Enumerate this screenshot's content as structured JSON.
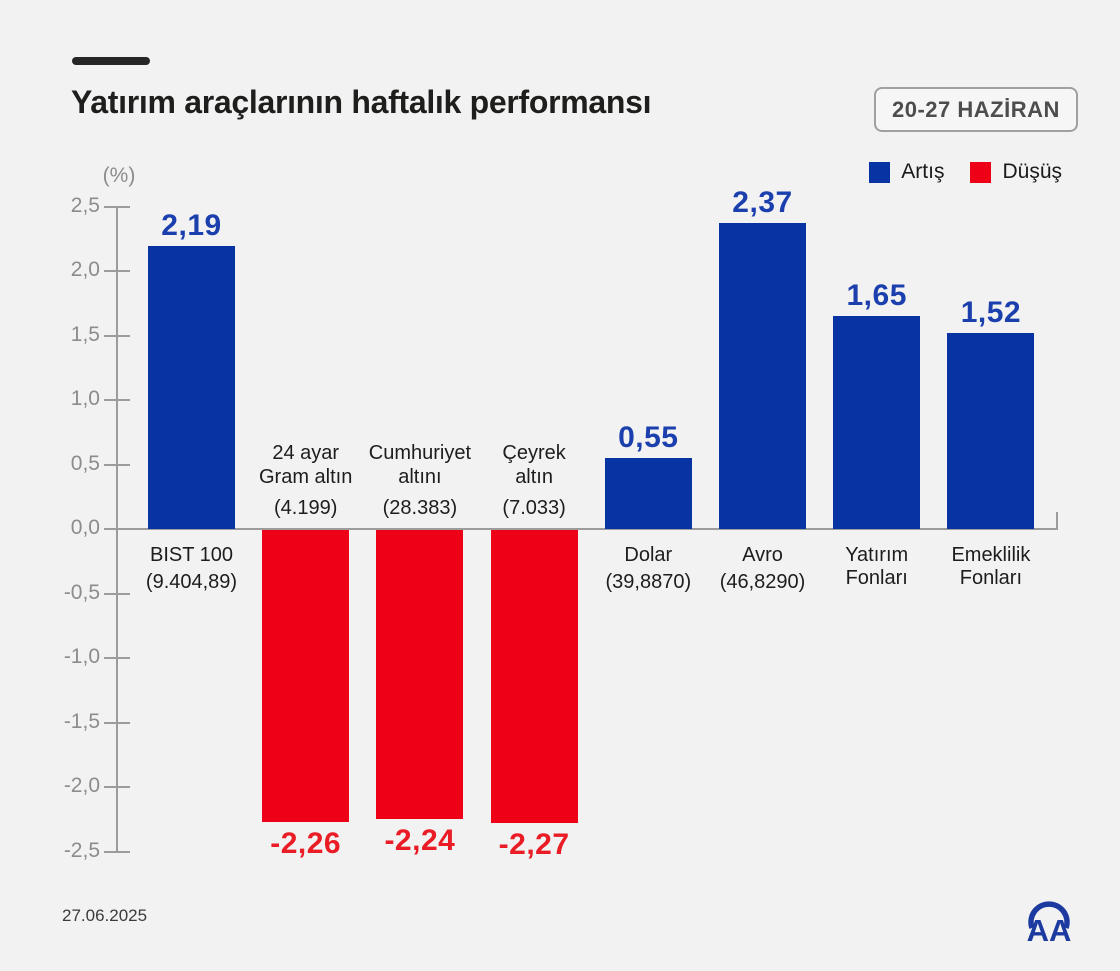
{
  "header": {
    "title": "Yatırım araçlarının haftalık performansı",
    "period_badge": "20-27 HAZİRAN"
  },
  "legend": {
    "increase_label": "Artış",
    "decrease_label": "Düşüş"
  },
  "footer": {
    "date": "27.06.2025",
    "logo_text": "AA"
  },
  "colors": {
    "increase": "#0834a3",
    "increase_text": "#1c3fae",
    "decrease": "#ee0016",
    "decrease_text": "#ea1c25",
    "background": "#f2f2f2",
    "title_text": "#1e1e1c",
    "underline": "#262626",
    "axis": "#9c9c9c",
    "logo": "#1d3aa0"
  },
  "chart_data": {
    "type": "bar",
    "title": "Yatırım araçlarının haftalık performansı",
    "period": "20-27 HAZİRAN",
    "ylabel": "(%)",
    "xlabel": "",
    "ylim": [
      -2.5,
      2.5
    ],
    "ytick_step": 0.5,
    "yticks": [
      "2,5",
      "2,0",
      "1,5",
      "1,0",
      "0,5",
      "0,0",
      "-0,5",
      "-1,0",
      "-1,5",
      "-2,0",
      "-2,5"
    ],
    "grid": false,
    "legend_position": "top-right",
    "legend_entries": [
      "Artış",
      "Düşüş"
    ],
    "categories": [
      "BIST 100",
      "24 ayar Gram altın",
      "Cumhuriyet altını",
      "Çeyrek altın",
      "Dolar",
      "Avro",
      "Yatırım Fonları",
      "Emeklilik Fonları"
    ],
    "values": [
      2.19,
      -2.26,
      -2.24,
      -2.27,
      0.55,
      2.37,
      1.65,
      1.52
    ],
    "bars": [
      {
        "id": "bist-100",
        "name_lines": [
          "BIST 100"
        ],
        "sublabel": "(9.404,89)",
        "value": 2.19,
        "value_label": "2,19",
        "direction": "up"
      },
      {
        "id": "gram-altin",
        "name_lines": [
          "24 ayar",
          "Gram altın"
        ],
        "sublabel": "(4.199)",
        "value": -2.26,
        "value_label": "-2,26",
        "direction": "down"
      },
      {
        "id": "cumhuriyet-altini",
        "name_lines": [
          "Cumhuriyet",
          "altını"
        ],
        "sublabel": "(28.383)",
        "value": -2.24,
        "value_label": "-2,24",
        "direction": "down"
      },
      {
        "id": "ceyrek-altin",
        "name_lines": [
          "Çeyrek",
          "altın"
        ],
        "sublabel": "(7.033)",
        "value": -2.27,
        "value_label": "-2,27",
        "direction": "down"
      },
      {
        "id": "dolar",
        "name_lines": [
          "Dolar"
        ],
        "sublabel": "(39,8870)",
        "value": 0.55,
        "value_label": "0,55",
        "direction": "up"
      },
      {
        "id": "avro",
        "name_lines": [
          "Avro"
        ],
        "sublabel": "(46,8290)",
        "value": 2.37,
        "value_label": "2,37",
        "direction": "up"
      },
      {
        "id": "yatirim-fonlari",
        "name_lines": [
          "Yatırım",
          "Fonları"
        ],
        "sublabel": "",
        "value": 1.65,
        "value_label": "1,65",
        "direction": "up"
      },
      {
        "id": "emeklilik-fonlari",
        "name_lines": [
          "Emeklilik",
          "Fonları"
        ],
        "sublabel": "",
        "value": 1.52,
        "value_label": "1,52",
        "direction": "up"
      }
    ]
  }
}
